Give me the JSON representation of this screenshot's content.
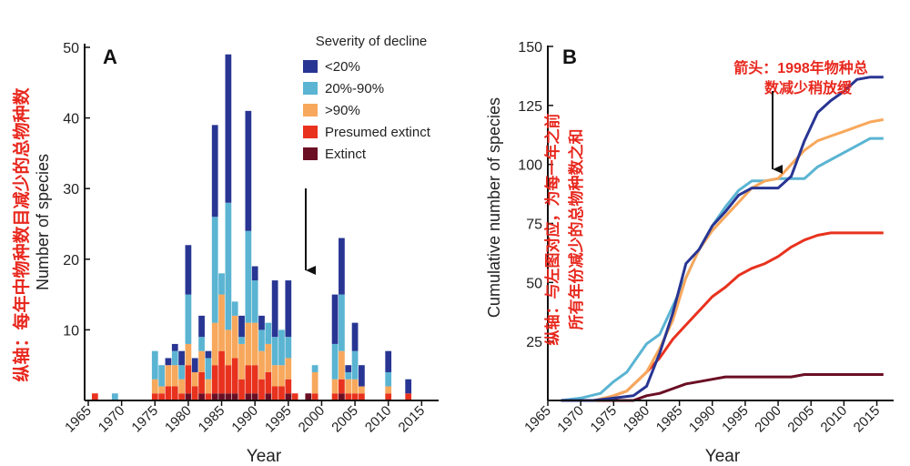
{
  "panel_a": {
    "label": "A",
    "side_note": "纵轴：每年中物种数目减少的总物种数",
    "arrow": true
  },
  "panel_b": {
    "label": "B",
    "side_note_line1": "纵轴：与左图对应，为每一年之前",
    "side_note_line2": "所有年份减少的总物种数之和",
    "annotation_line1": "箭头：1998年物种总",
    "annotation_line2": "数减少稍放缓"
  },
  "colors": {
    "lt20": "#283593",
    "p20_90": "#5ab4d2",
    "gt90": "#f7a85c",
    "presumed": "#e8321e",
    "extinct": "#6b0f24",
    "annotation": "#e8281e"
  },
  "chart_data": [
    {
      "type": "bar",
      "stacked": true,
      "title": "",
      "xlabel": "Year",
      "ylabel": "Number of species",
      "xlim": [
        1965,
        2017
      ],
      "ylim": [
        0,
        50
      ],
      "xticks": [
        1965,
        1970,
        1975,
        1980,
        1985,
        1990,
        1995,
        2000,
        2005,
        2010,
        2015
      ],
      "yticks": [
        10,
        20,
        30,
        40,
        50
      ],
      "legend_title": "Severity of decline",
      "legend_position": "top-right",
      "years": [
        1966,
        1967,
        1968,
        1969,
        1970,
        1971,
        1972,
        1973,
        1974,
        1975,
        1976,
        1977,
        1978,
        1979,
        1980,
        1981,
        1982,
        1983,
        1984,
        1985,
        1986,
        1987,
        1988,
        1989,
        1990,
        1991,
        1992,
        1993,
        1994,
        1995,
        1996,
        1997,
        1998,
        1999,
        2000,
        2001,
        2002,
        2003,
        2004,
        2005,
        2006,
        2007,
        2008,
        2009,
        2010,
        2011,
        2012,
        2013,
        2014,
        2015
      ],
      "series": [
        {
          "name": "Extinct",
          "key": "extinct",
          "values": [
            0,
            0,
            0,
            0,
            0,
            0,
            0,
            0,
            0,
            0,
            0,
            0,
            0,
            0,
            1,
            0,
            1,
            0,
            1,
            1,
            1,
            1,
            0,
            1,
            1,
            0,
            1,
            0,
            0,
            1,
            0,
            0,
            1,
            0,
            0,
            0,
            0,
            1,
            0,
            0,
            0,
            0,
            0,
            0,
            0,
            0,
            0,
            0,
            0,
            0
          ]
        },
        {
          "name": "Presumed extinct",
          "key": "presumed",
          "values": [
            1,
            0,
            0,
            0,
            0,
            0,
            0,
            0,
            0,
            1,
            1,
            2,
            2,
            1,
            4,
            2,
            3,
            1,
            4,
            6,
            4,
            5,
            3,
            4,
            4,
            3,
            3,
            2,
            2,
            2,
            1,
            0,
            0,
            1,
            0,
            0,
            1,
            2,
            1,
            1,
            1,
            0,
            0,
            0,
            1,
            0,
            0,
            1,
            0,
            0
          ]
        },
        {
          "name": ">90%",
          "key": "gt90",
          "values": [
            0,
            0,
            0,
            0,
            0,
            0,
            0,
            0,
            0,
            2,
            1,
            3,
            3,
            2,
            3,
            2,
            3,
            2,
            6,
            8,
            5,
            6,
            5,
            6,
            6,
            4,
            4,
            3,
            3,
            3,
            0,
            0,
            0,
            3,
            0,
            0,
            2,
            4,
            2,
            2,
            1,
            0,
            0,
            0,
            1,
            0,
            0,
            0,
            0,
            0
          ]
        },
        {
          "name": "20%-90%",
          "key": "p20_90",
          "values": [
            0,
            0,
            0,
            1,
            0,
            0,
            0,
            0,
            0,
            4,
            3,
            0,
            2,
            2,
            7,
            0,
            2,
            3,
            15,
            3,
            18,
            2,
            1,
            13,
            6,
            3,
            3,
            4,
            5,
            3,
            0,
            0,
            0,
            1,
            0,
            0,
            5,
            8,
            1,
            4,
            0,
            0,
            0,
            0,
            2,
            0,
            0,
            0,
            0,
            0
          ]
        },
        {
          "name": "<20%",
          "key": "lt20",
          "values": [
            0,
            0,
            0,
            0,
            0,
            0,
            0,
            0,
            0,
            0,
            0,
            1,
            1,
            2,
            7,
            2,
            3,
            1,
            13,
            0,
            21,
            0,
            3,
            17,
            2,
            2,
            0,
            8,
            0,
            8,
            0,
            0,
            0,
            0,
            0,
            0,
            7,
            8,
            1,
            4,
            3,
            0,
            0,
            0,
            3,
            0,
            0,
            2,
            0,
            0
          ]
        }
      ]
    },
    {
      "type": "line",
      "title": "",
      "xlabel": "Year",
      "ylabel": "Cumulative number of species",
      "xlim": [
        1965,
        2017
      ],
      "ylim": [
        0,
        150
      ],
      "xticks": [
        1965,
        1970,
        1975,
        1980,
        1985,
        1990,
        1995,
        2000,
        2005,
        2010,
        2015
      ],
      "yticks": [
        25,
        50,
        75,
        100,
        125,
        150
      ],
      "series": [
        {
          "name": "<20%",
          "key": "lt20",
          "x": [
            1967,
            1972,
            1975,
            1978,
            1980,
            1982,
            1984,
            1986,
            1988,
            1990,
            1992,
            1994,
            1996,
            1998,
            2000,
            2002,
            2004,
            2006,
            2008,
            2010,
            2012,
            2014,
            2016
          ],
          "y": [
            0,
            0,
            1,
            2,
            6,
            20,
            37,
            58,
            64,
            74,
            80,
            87,
            90,
            90,
            90,
            95,
            110,
            122,
            127,
            131,
            136,
            137,
            137
          ]
        },
        {
          "name": "20%-90%",
          "key": "p20_90",
          "x": [
            1967,
            1970,
            1973,
            1975,
            1977,
            1980,
            1982,
            1984,
            1986,
            1988,
            1990,
            1992,
            1994,
            1996,
            1998,
            2000,
            2002,
            2004,
            2006,
            2008,
            2010,
            2012,
            2014,
            2016
          ],
          "y": [
            0,
            1,
            3,
            8,
            12,
            24,
            28,
            40,
            52,
            64,
            74,
            82,
            89,
            93,
            93,
            94,
            94,
            94,
            99,
            102,
            105,
            108,
            111,
            111
          ]
        },
        {
          "name": ">90%",
          "key": "gt90",
          "x": [
            1967,
            1972,
            1975,
            1977,
            1980,
            1982,
            1984,
            1986,
            1988,
            1990,
            1992,
            1994,
            1996,
            1998,
            2000,
            2002,
            2004,
            2006,
            2008,
            2010,
            2012,
            2014,
            2016
          ],
          "y": [
            0,
            0,
            2,
            4,
            12,
            22,
            34,
            52,
            64,
            72,
            78,
            84,
            90,
            93,
            94,
            100,
            106,
            110,
            112,
            114,
            116,
            118,
            119
          ]
        },
        {
          "name": "Presumed extinct",
          "key": "presumed",
          "x": [
            1967,
            1972,
            1974,
            1977,
            1980,
            1982,
            1984,
            1986,
            1988,
            1990,
            1992,
            1994,
            1996,
            1998,
            2000,
            2002,
            2004,
            2006,
            2008,
            2010,
            2012,
            2014,
            2016
          ],
          "y": [
            0,
            0,
            1,
            4,
            12,
            18,
            26,
            32,
            38,
            44,
            48,
            53,
            56,
            58,
            61,
            65,
            68,
            70,
            71,
            71,
            71,
            71,
            71
          ]
        },
        {
          "name": "Extinct",
          "key": "extinct",
          "x": [
            1967,
            1978,
            1980,
            1982,
            1984,
            1986,
            1988,
            1990,
            1992,
            1994,
            1996,
            1998,
            2000,
            2002,
            2004,
            2006,
            2008,
            2010,
            2012,
            2014,
            2016
          ],
          "y": [
            0,
            0,
            2,
            3,
            5,
            7,
            8,
            9,
            10,
            10,
            10,
            10,
            10,
            10,
            11,
            11,
            11,
            11,
            11,
            11,
            11
          ]
        }
      ]
    }
  ]
}
